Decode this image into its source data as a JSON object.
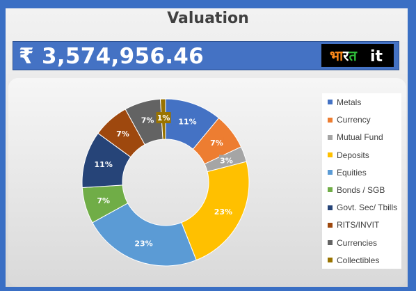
{
  "header": {
    "title": "Valuation",
    "total_value": "₹ 3,574,956.46"
  },
  "logo": {
    "hindi_part": "भारत",
    "latin_part": "it",
    "colors": {
      "bha": "#ff8a1a",
      "ra": "#ffffff",
      "ta": "#2fbf3a",
      "it": "#ffffff",
      "background": "#000000"
    }
  },
  "chart_data": {
    "type": "pie",
    "donut": true,
    "categories": [
      "Metals",
      "Currency",
      "Mutual Fund",
      "Deposits",
      "Equities",
      "Bonds / SGB",
      "Govt. Sec/ Tbills",
      "RITS/INVIT",
      "Currencies",
      "Collectibles"
    ],
    "values": [
      11,
      7,
      3,
      23,
      23,
      7,
      11,
      7,
      7,
      1
    ],
    "labels": [
      "11%",
      "7%",
      "3%",
      "23%",
      "23%",
      "7%",
      "11%",
      "7%",
      "7%",
      "1%"
    ],
    "colors": [
      "#4472c4",
      "#ed7d31",
      "#a5a5a5",
      "#ffc000",
      "#5b9bd5",
      "#70ad47",
      "#264478",
      "#9e480e",
      "#636363",
      "#997300"
    ],
    "legend_position": "right"
  }
}
